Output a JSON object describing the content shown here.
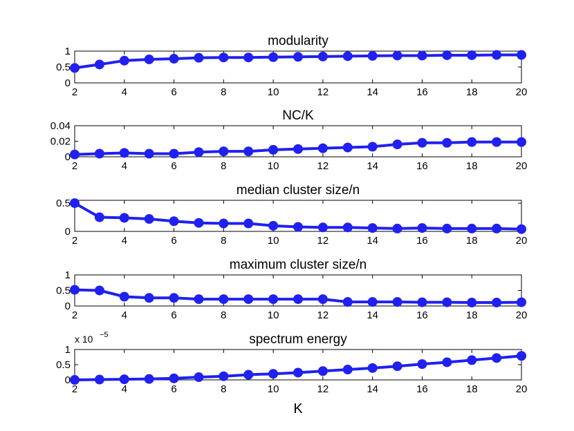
{
  "chart_data": [
    {
      "type": "line",
      "title": "modularity",
      "xlabel": "",
      "ylabel": "",
      "x": [
        2,
        3,
        4,
        5,
        6,
        7,
        8,
        9,
        10,
        11,
        12,
        13,
        14,
        15,
        16,
        17,
        18,
        19,
        20
      ],
      "xticks": [
        "2",
        "4",
        "6",
        "8",
        "10",
        "12",
        "14",
        "16",
        "18",
        "20"
      ],
      "xlim": [
        2,
        20
      ],
      "ylim": [
        0,
        1
      ],
      "yticks": [
        "0",
        "0.5",
        "1"
      ],
      "y_multiplier": "",
      "y_multiplier_exp": "",
      "series": [
        {
          "name": "modularity",
          "values": [
            0.47,
            0.58,
            0.7,
            0.74,
            0.76,
            0.79,
            0.8,
            0.8,
            0.81,
            0.82,
            0.83,
            0.84,
            0.85,
            0.86,
            0.86,
            0.87,
            0.87,
            0.88,
            0.88
          ]
        }
      ]
    },
    {
      "type": "line",
      "title": "NC/K",
      "xlabel": "",
      "ylabel": "",
      "x": [
        2,
        3,
        4,
        5,
        6,
        7,
        8,
        9,
        10,
        11,
        12,
        13,
        14,
        15,
        16,
        17,
        18,
        19,
        20
      ],
      "xticks": [
        "2",
        "4",
        "6",
        "8",
        "10",
        "12",
        "14",
        "16",
        "18",
        "20"
      ],
      "xlim": [
        2,
        20
      ],
      "ylim": [
        0,
        0.04
      ],
      "yticks": [
        "0",
        "0.02",
        "0.04"
      ],
      "y_multiplier": "",
      "y_multiplier_exp": "",
      "series": [
        {
          "name": "NC/K",
          "values": [
            0.003,
            0.004,
            0.005,
            0.004,
            0.004,
            0.006,
            0.007,
            0.007,
            0.009,
            0.01,
            0.011,
            0.012,
            0.013,
            0.016,
            0.018,
            0.018,
            0.019,
            0.019,
            0.019
          ]
        }
      ]
    },
    {
      "type": "line",
      "title": "median cluster size/n",
      "xlabel": "",
      "ylabel": "",
      "x": [
        2,
        3,
        4,
        5,
        6,
        7,
        8,
        9,
        10,
        11,
        12,
        13,
        14,
        15,
        16,
        17,
        18,
        19,
        20
      ],
      "xticks": [
        "2",
        "4",
        "6",
        "8",
        "10",
        "12",
        "14",
        "16",
        "18",
        "20"
      ],
      "xlim": [
        2,
        20
      ],
      "ylim": [
        0,
        0.55
      ],
      "yticks": [
        "0",
        "0.5"
      ],
      "y_multiplier": "",
      "y_multiplier_exp": "",
      "series": [
        {
          "name": "median cluster size/n",
          "values": [
            0.5,
            0.25,
            0.24,
            0.22,
            0.18,
            0.15,
            0.14,
            0.14,
            0.1,
            0.08,
            0.07,
            0.07,
            0.06,
            0.05,
            0.06,
            0.05,
            0.05,
            0.05,
            0.04
          ]
        }
      ]
    },
    {
      "type": "line",
      "title": "maximum cluster size/n",
      "xlabel": "",
      "ylabel": "",
      "x": [
        2,
        3,
        4,
        5,
        6,
        7,
        8,
        9,
        10,
        11,
        12,
        13,
        14,
        15,
        16,
        17,
        18,
        19,
        20
      ],
      "xticks": [
        "2",
        "4",
        "6",
        "8",
        "10",
        "12",
        "14",
        "16",
        "18",
        "20"
      ],
      "xlim": [
        2,
        20
      ],
      "ylim": [
        0,
        1
      ],
      "yticks": [
        "0",
        "0.5",
        "1"
      ],
      "y_multiplier": "",
      "y_multiplier_exp": "",
      "series": [
        {
          "name": "maximum cluster size/n",
          "values": [
            0.52,
            0.5,
            0.3,
            0.26,
            0.26,
            0.22,
            0.22,
            0.22,
            0.22,
            0.22,
            0.22,
            0.13,
            0.13,
            0.13,
            0.12,
            0.12,
            0.11,
            0.11,
            0.12
          ]
        }
      ]
    },
    {
      "type": "line",
      "title": "spectrum energy",
      "xlabel": "K",
      "ylabel": "",
      "x": [
        2,
        3,
        4,
        5,
        6,
        7,
        8,
        9,
        10,
        11,
        12,
        13,
        14,
        15,
        16,
        17,
        18,
        19,
        20
      ],
      "xticks": [
        "2",
        "4",
        "6",
        "8",
        "10",
        "12",
        "14",
        "16",
        "18",
        "20"
      ],
      "xlim": [
        2,
        20
      ],
      "ylim": [
        0,
        1
      ],
      "yticks": [
        "0",
        "0.5",
        "1"
      ],
      "y_multiplier": "x 10",
      "y_multiplier_exp": "−5",
      "series": [
        {
          "name": "spectrum energy",
          "values": [
            0.0,
            0.01,
            0.02,
            0.03,
            0.05,
            0.09,
            0.12,
            0.17,
            0.2,
            0.24,
            0.29,
            0.34,
            0.39,
            0.45,
            0.52,
            0.58,
            0.65,
            0.72,
            0.79
          ]
        }
      ]
    }
  ],
  "colors": {
    "series": "#2020f0",
    "axes": "#000000"
  }
}
